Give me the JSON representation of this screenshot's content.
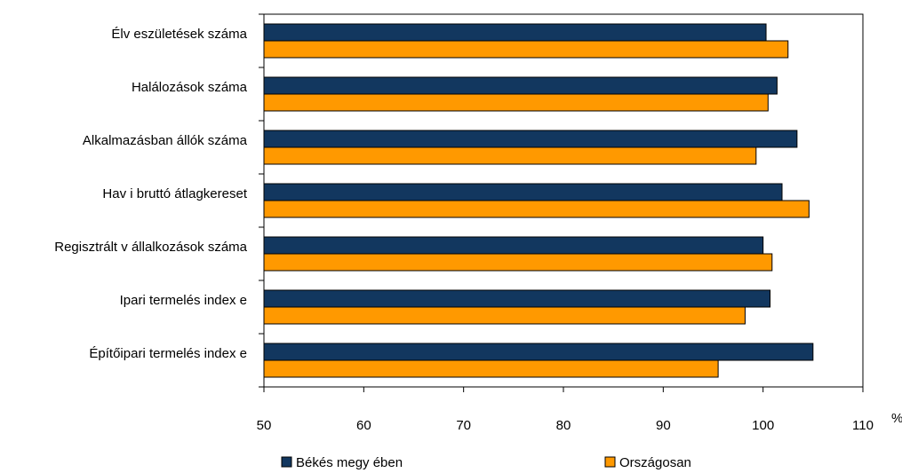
{
  "chart_data": {
    "type": "bar",
    "orientation": "horizontal",
    "categories": [
      "Élv eszületések száma",
      "Halálozások száma",
      "Alkalmazásban állók száma",
      "Hav i bruttó átlagkereset",
      "Regisztrált v állalkozások száma",
      "Ipari termelés index e",
      "Építőipari termelés index e"
    ],
    "series": [
      {
        "name": "Békés megy ében",
        "color": "#12375f",
        "values": [
          100.3,
          101.4,
          103.4,
          101.9,
          100.0,
          100.7,
          105.0
        ]
      },
      {
        "name": "Országosan",
        "color": "#ff9900",
        "values": [
          102.5,
          100.5,
          99.3,
          104.6,
          100.9,
          98.2,
          95.5
        ]
      }
    ],
    "xlim": [
      50,
      110
    ],
    "xticks": [
      "50",
      "60",
      "70",
      "80",
      "90",
      "100",
      "110"
    ],
    "x_unit": "%",
    "grid": false,
    "legend": "bottom"
  }
}
